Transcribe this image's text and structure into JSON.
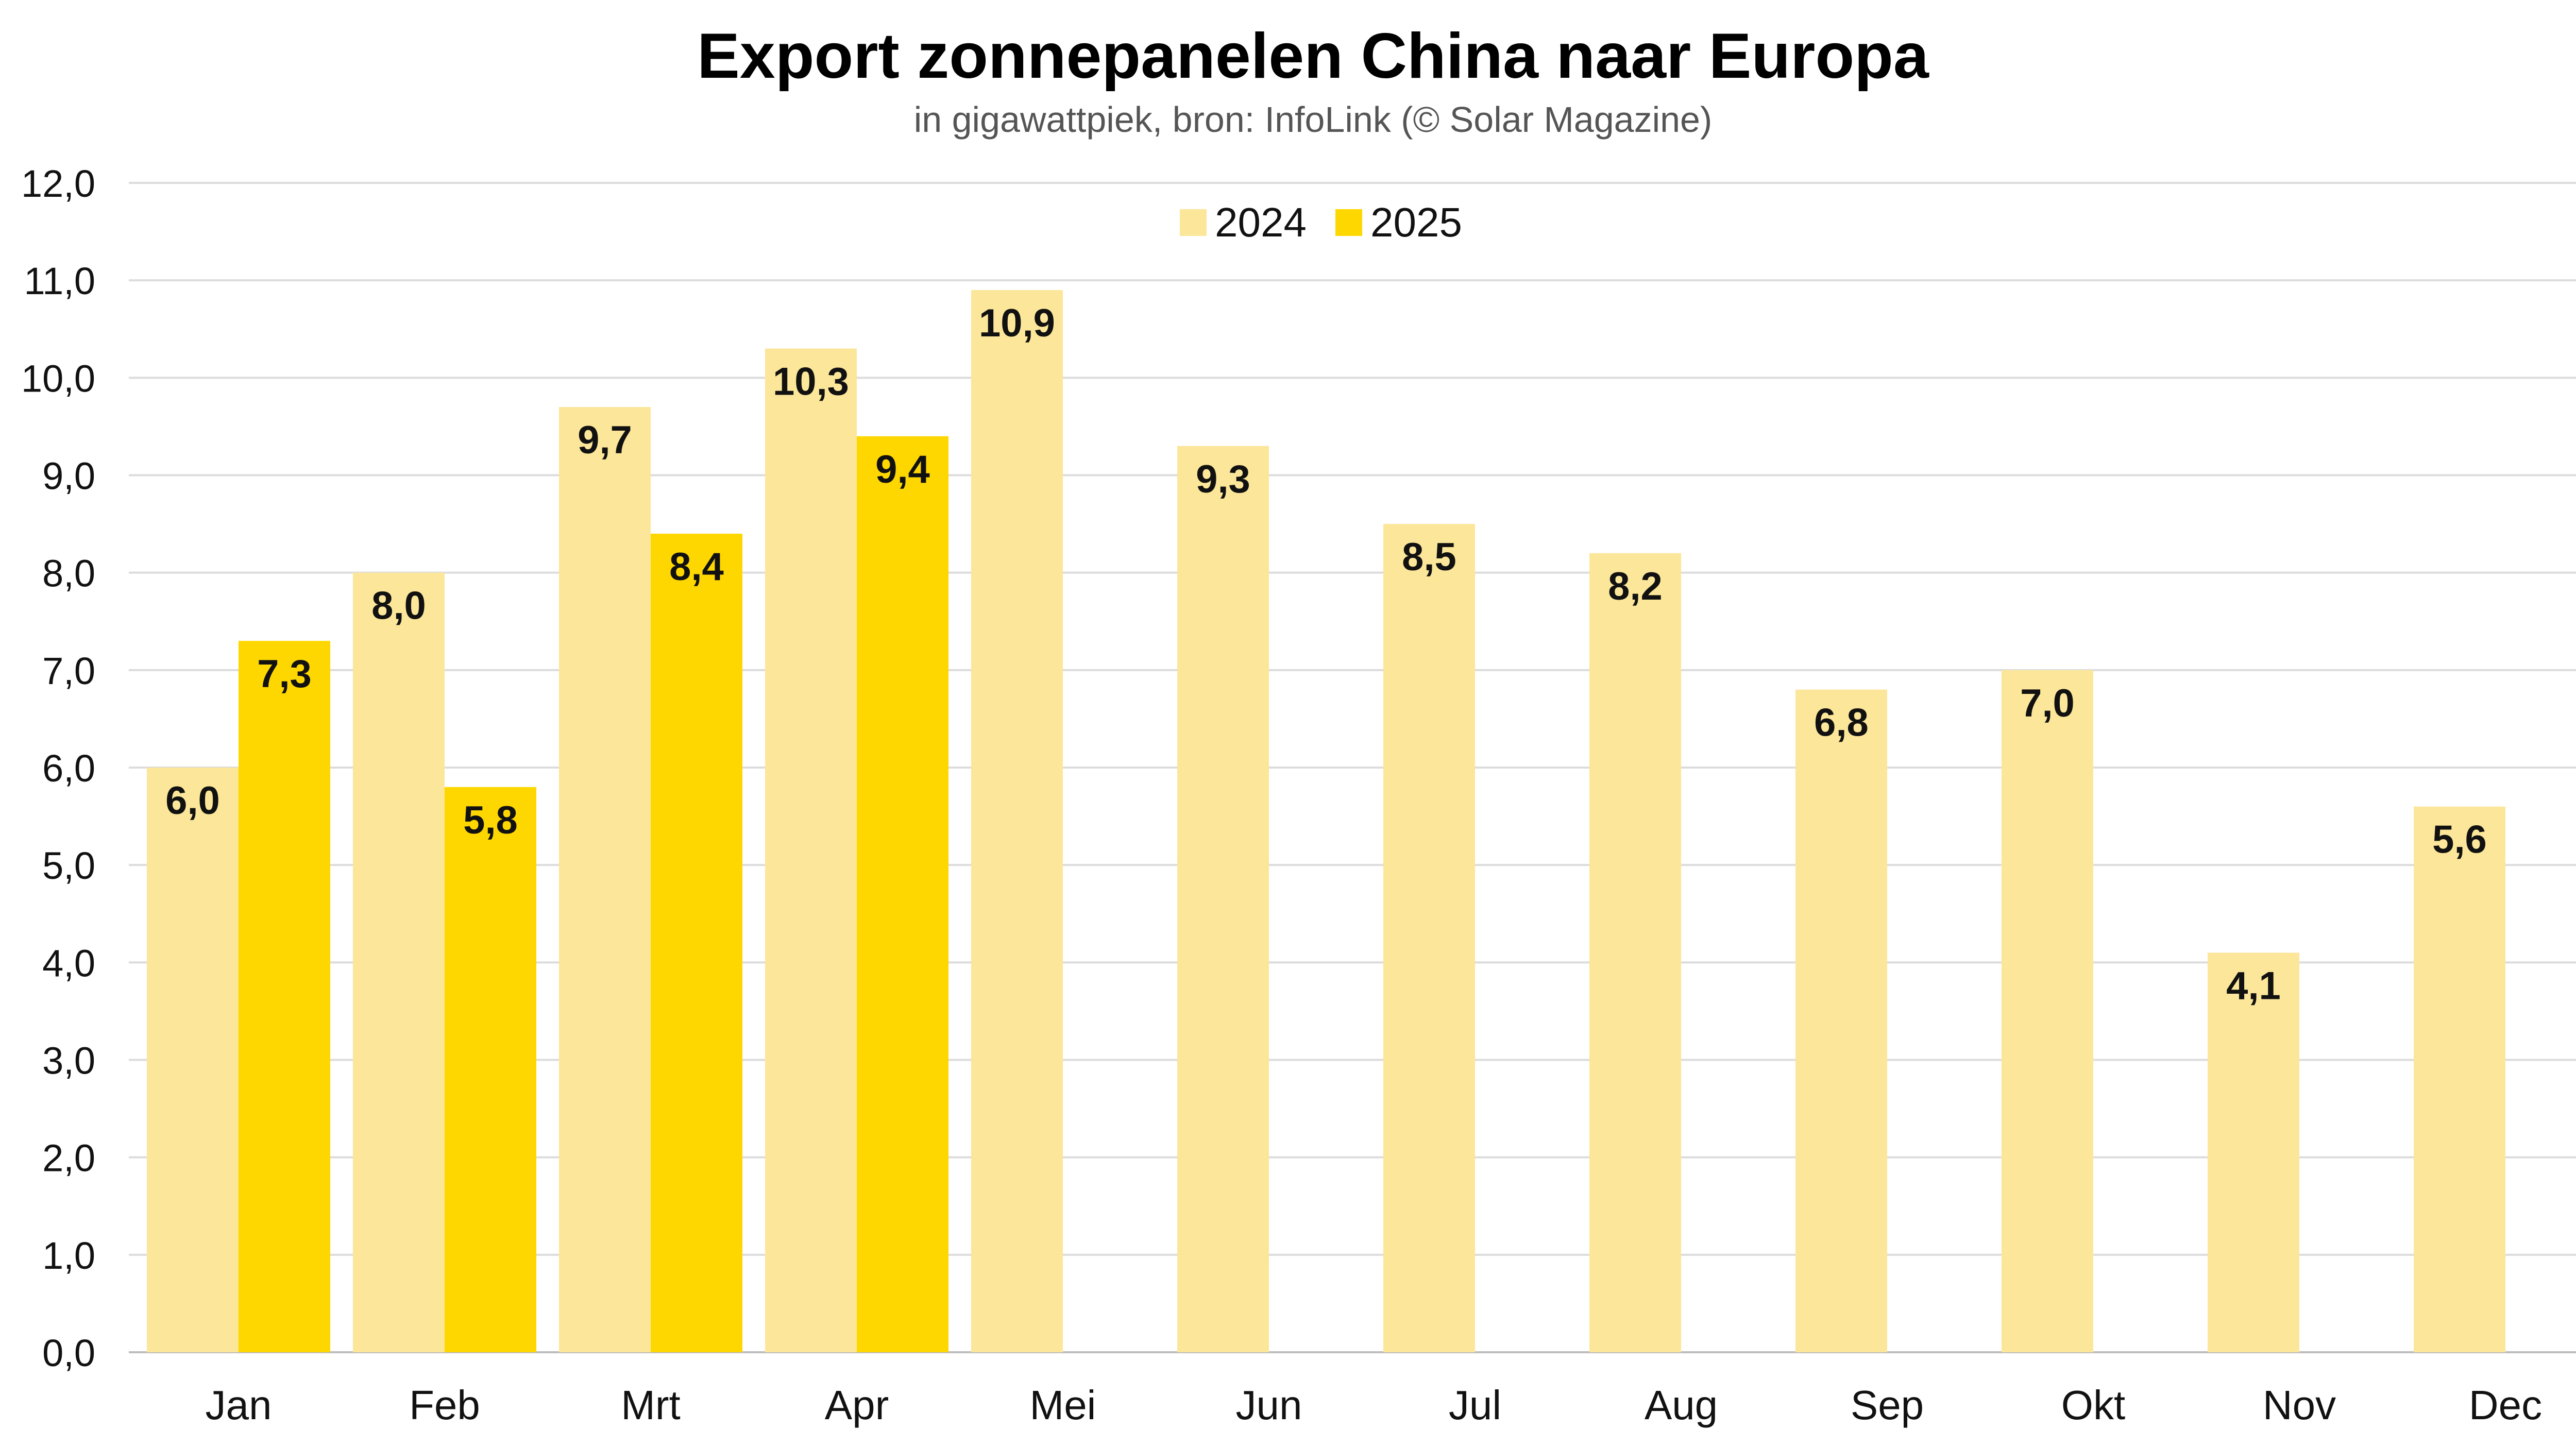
{
  "chart_data": {
    "type": "bar",
    "title": "Export zonnepanelen China naar Europa",
    "subtitle": "in gigawattpiek, bron: InfoLink (© Solar Magazine)",
    "categories": [
      "Jan",
      "Feb",
      "Mrt",
      "Apr",
      "Mei",
      "Jun",
      "Jul",
      "Aug",
      "Sep",
      "Okt",
      "Nov",
      "Dec"
    ],
    "series": [
      {
        "name": "2024",
        "color": "#FCE699",
        "values": [
          6.0,
          8.0,
          9.7,
          10.3,
          10.9,
          9.3,
          8.5,
          8.2,
          6.8,
          7.0,
          4.1,
          5.6
        ],
        "labels": [
          "6,0",
          "8,0",
          "9,7",
          "10,3",
          "10,9",
          "9,3",
          "8,5",
          "8,2",
          "6,8",
          "7,0",
          "4,1",
          "5,6"
        ]
      },
      {
        "name": "2025",
        "color": "#FFD700",
        "values": [
          7.3,
          5.8,
          8.4,
          9.4,
          null,
          null,
          null,
          null,
          null,
          null,
          null,
          null
        ],
        "labels": [
          "7,3",
          "5,8",
          "8,4",
          "9,4",
          "",
          "",
          "",
          "",
          "",
          "",
          "",
          ""
        ]
      }
    ],
    "yticks": [
      "0,0",
      "1,0",
      "2,0",
      "3,0",
      "4,0",
      "5,0",
      "6,0",
      "7,0",
      "8,0",
      "9,0",
      "10,0",
      "11,0",
      "12,0"
    ],
    "ylim": [
      0,
      12
    ],
    "xlabel": "",
    "ylabel": "",
    "grid": true,
    "legend_position": "top-center"
  }
}
